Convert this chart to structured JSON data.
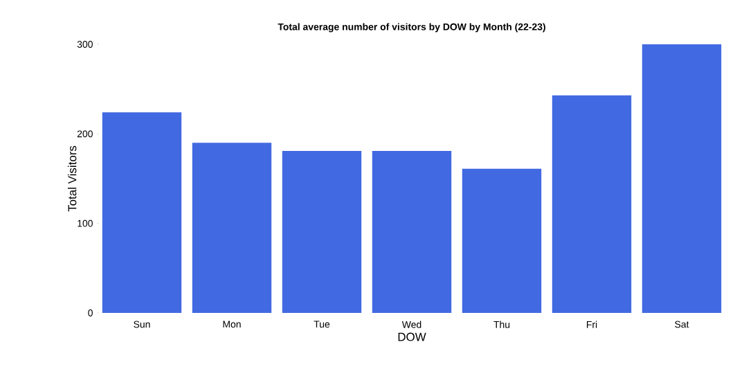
{
  "chart_data": {
    "type": "bar",
    "title": "Total average number of visitors by DOW by Month (22-23)",
    "xlabel": "DOW",
    "ylabel": "Total Visitors",
    "categories": [
      "Sun",
      "Mon",
      "Tue",
      "Wed",
      "Thu",
      "Fri",
      "Sat"
    ],
    "values": [
      224,
      190,
      181,
      181,
      161,
      243,
      300
    ],
    "color": "#4169e1",
    "ylim": [
      0,
      300
    ],
    "yticks": [
      0,
      100,
      200,
      300
    ],
    "grid": false
  }
}
